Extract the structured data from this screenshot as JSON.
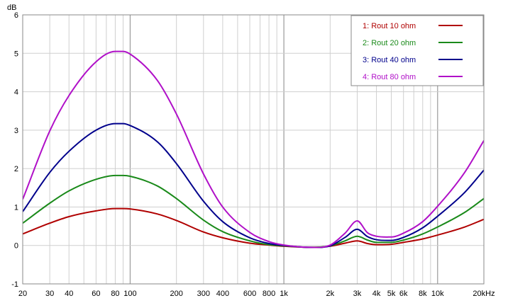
{
  "chart_data": {
    "type": "line",
    "x_scale": "log",
    "y_unit": "dB",
    "xlim": [
      20,
      20000
    ],
    "ylim": [
      -1,
      6
    ],
    "grid": true,
    "legend_placement": "top-right",
    "x_ticks": [
      {
        "v": 20,
        "label": "20"
      },
      {
        "v": 30,
        "label": "30"
      },
      {
        "v": 40,
        "label": "40"
      },
      {
        "v": 60,
        "label": "60"
      },
      {
        "v": 80,
        "label": "80"
      },
      {
        "v": 100,
        "label": "100"
      },
      {
        "v": 200,
        "label": "200"
      },
      {
        "v": 300,
        "label": "300"
      },
      {
        "v": 400,
        "label": "400"
      },
      {
        "v": 600,
        "label": "600"
      },
      {
        "v": 800,
        "label": "800"
      },
      {
        "v": 1000,
        "label": "1k"
      },
      {
        "v": 2000,
        "label": "2k"
      },
      {
        "v": 3000,
        "label": "3k"
      },
      {
        "v": 4000,
        "label": "4k"
      },
      {
        "v": 5000,
        "label": "5k"
      },
      {
        "v": 6000,
        "label": "6k"
      },
      {
        "v": 8000,
        "label": "8k"
      },
      {
        "v": 10000,
        "label": "10k"
      },
      {
        "v": 20000,
        "label": "20kHz"
      }
    ],
    "y_ticks": [
      {
        "v": 6,
        "label": "6"
      },
      {
        "v": 5,
        "label": "5"
      },
      {
        "v": 4,
        "label": "4"
      },
      {
        "v": 3,
        "label": "3"
      },
      {
        "v": 2,
        "label": "2"
      },
      {
        "v": 1,
        "label": "1"
      },
      {
        "v": 0,
        "label": "0"
      },
      {
        "v": -1,
        "label": "-1"
      }
    ],
    "x": [
      20,
      30,
      40,
      60,
      80,
      90,
      100,
      150,
      200,
      300,
      400,
      600,
      800,
      1000,
      1500,
      2000,
      2500,
      3000,
      3500,
      4000,
      5000,
      6000,
      8000,
      10000,
      15000,
      20000
    ],
    "series": [
      {
        "name": "1: Rout 10 ohm",
        "color": "#b00000",
        "values": [
          0.3,
          0.58,
          0.75,
          0.9,
          0.96,
          0.96,
          0.95,
          0.82,
          0.65,
          0.35,
          0.2,
          0.06,
          0.01,
          -0.02,
          -0.05,
          -0.02,
          0.06,
          0.12,
          0.05,
          0.02,
          0.03,
          0.08,
          0.17,
          0.27,
          0.48,
          0.68
        ]
      },
      {
        "name": "2: Rout 20 ohm",
        "color": "#1a8a1a",
        "values": [
          0.58,
          1.1,
          1.42,
          1.72,
          1.82,
          1.82,
          1.8,
          1.55,
          1.22,
          0.66,
          0.36,
          0.12,
          0.02,
          -0.01,
          -0.05,
          -0.01,
          0.12,
          0.24,
          0.14,
          0.08,
          0.08,
          0.14,
          0.3,
          0.48,
          0.86,
          1.22
        ]
      },
      {
        "name": "3: Rout 40 ohm",
        "color": "#00008c",
        "values": [
          0.88,
          1.9,
          2.45,
          3.0,
          3.17,
          3.17,
          3.12,
          2.7,
          2.13,
          1.15,
          0.62,
          0.2,
          0.05,
          0.0,
          -0.05,
          -0.01,
          0.21,
          0.42,
          0.23,
          0.15,
          0.13,
          0.21,
          0.46,
          0.76,
          1.38,
          1.96
        ]
      },
      {
        "name": "4: Rout 80 ohm",
        "color": "#b010c8",
        "values": [
          1.2,
          2.98,
          3.9,
          4.78,
          5.05,
          5.05,
          4.98,
          4.3,
          3.42,
          1.86,
          1.0,
          0.34,
          0.1,
          0.01,
          -0.05,
          0.01,
          0.32,
          0.64,
          0.33,
          0.24,
          0.22,
          0.32,
          0.62,
          1.02,
          1.9,
          2.73
        ]
      }
    ]
  }
}
